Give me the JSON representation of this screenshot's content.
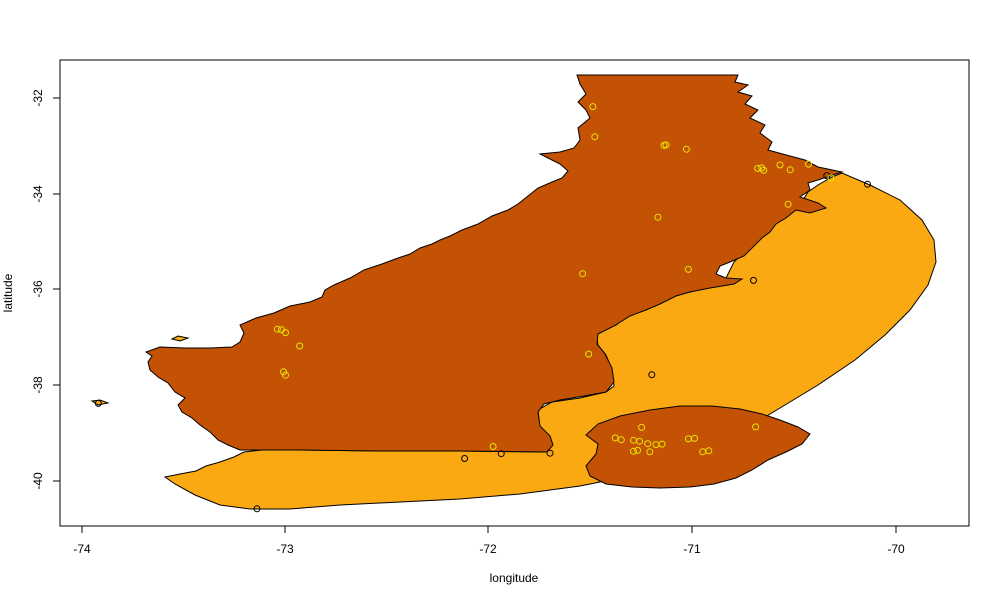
{
  "chart_data": {
    "type": "map",
    "title": "",
    "xlabel": "longitude",
    "ylabel": "latitude",
    "xlim": [
      -74.1,
      -69.6
    ],
    "ylim": [
      -40.95,
      -31.2
    ],
    "x_ticks": [
      "-74",
      "-73",
      "-72",
      "-71",
      "-70"
    ],
    "y_ticks": [
      "-32",
      "-34",
      "-36",
      "-38",
      "-40"
    ],
    "x_tick_values": [
      -74,
      -73,
      -72,
      -71,
      -70
    ],
    "y_tick_values": [
      -32,
      -34,
      -36,
      -38,
      -40
    ],
    "colors": {
      "outer_region": "#fba912",
      "inner_region": "#c35205",
      "outline": "#000000",
      "site_marker_yellow": "#e6e600",
      "site_marker_black": "#000000"
    },
    "markers_yellow": [
      [
        -71.49,
        -32.18
      ],
      [
        -71.48,
        -32.81
      ],
      [
        -71.13,
        -32.98
      ],
      [
        -71.14,
        -32.99
      ],
      [
        -71.03,
        -33.07
      ],
      [
        -70.68,
        -33.47
      ],
      [
        -70.66,
        -33.46
      ],
      [
        -70.65,
        -33.51
      ],
      [
        -70.57,
        -33.4
      ],
      [
        -70.52,
        -33.5
      ],
      [
        -70.43,
        -33.38
      ],
      [
        -70.32,
        -33.67
      ],
      [
        -70.53,
        -34.22
      ],
      [
        -71.17,
        -34.49
      ],
      [
        -71.02,
        -35.58
      ],
      [
        -71.54,
        -35.67
      ],
      [
        -71.51,
        -37.35
      ],
      [
        -73.04,
        -36.83
      ],
      [
        -73.02,
        -36.84
      ],
      [
        -73.0,
        -36.9
      ],
      [
        -72.93,
        -37.18
      ],
      [
        -73.01,
        -37.72
      ],
      [
        -73.0,
        -37.79
      ],
      [
        -71.98,
        -39.28
      ],
      [
        -71.38,
        -39.1
      ],
      [
        -71.35,
        -39.14
      ],
      [
        -71.29,
        -39.15
      ],
      [
        -71.26,
        -39.17
      ],
      [
        -71.22,
        -39.22
      ],
      [
        -71.18,
        -39.24
      ],
      [
        -71.15,
        -39.23
      ],
      [
        -71.25,
        -38.88
      ],
      [
        -71.02,
        -39.12
      ],
      [
        -70.99,
        -39.11
      ],
      [
        -70.69,
        -38.87
      ],
      [
        -71.27,
        -39.36
      ],
      [
        -71.29,
        -39.38
      ],
      [
        -71.21,
        -39.39
      ],
      [
        -70.95,
        -39.39
      ],
      [
        -70.92,
        -39.37
      ]
    ],
    "markers_black": [
      [
        -73.92,
        -38.38
      ],
      [
        -73.14,
        -40.58
      ],
      [
        -72.12,
        -39.53
      ],
      [
        -71.94,
        -39.43
      ],
      [
        -71.7,
        -39.42
      ],
      [
        -71.2,
        -37.78
      ],
      [
        -70.7,
        -35.81
      ],
      [
        -70.14,
        -33.8
      ],
      [
        -70.34,
        -33.62
      ]
    ]
  }
}
